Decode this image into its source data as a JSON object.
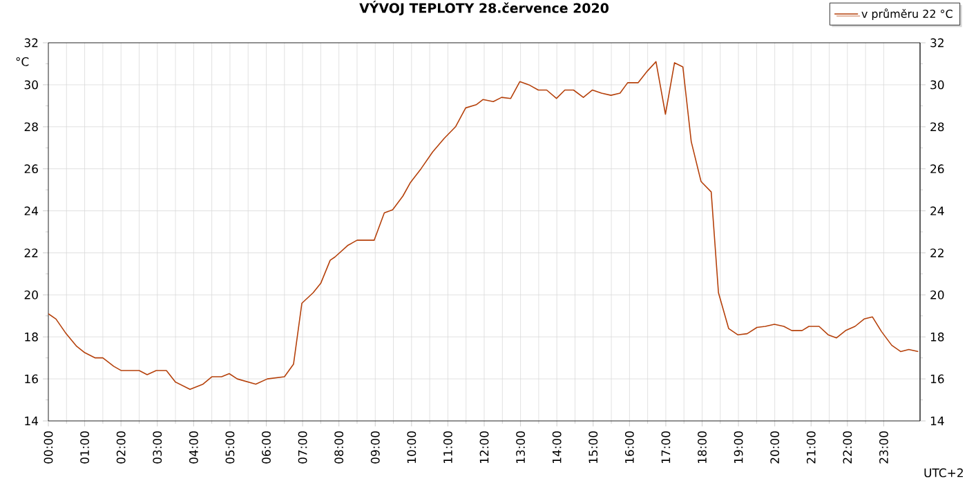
{
  "chart_data": {
    "type": "line",
    "title": "VÝVOJ TEPLOTY  28.července 2020",
    "ylabel": "°C",
    "annotations": [
      "UTC+2"
    ],
    "xlim": [
      0,
      24
    ],
    "xticks": [
      {
        "value": 0,
        "label": "00:00"
      },
      {
        "value": 1,
        "label": "01:00"
      },
      {
        "value": 2,
        "label": "02:00"
      },
      {
        "value": 3,
        "label": "03:00"
      },
      {
        "value": 4,
        "label": "04:00"
      },
      {
        "value": 5,
        "label": "05:00"
      },
      {
        "value": 6,
        "label": "06:00"
      },
      {
        "value": 7,
        "label": "07:00"
      },
      {
        "value": 8,
        "label": "08:00"
      },
      {
        "value": 9,
        "label": "09:00"
      },
      {
        "value": 10,
        "label": "10:00"
      },
      {
        "value": 11,
        "label": "11:00"
      },
      {
        "value": 12,
        "label": "12:00"
      },
      {
        "value": 13,
        "label": "13:00"
      },
      {
        "value": 14,
        "label": "14:00"
      },
      {
        "value": 15,
        "label": "15:00"
      },
      {
        "value": 16,
        "label": "16:00"
      },
      {
        "value": 17,
        "label": "17:00"
      },
      {
        "value": 18,
        "label": "18:00"
      },
      {
        "value": 19,
        "label": "19:00"
      },
      {
        "value": 20,
        "label": "20:00"
      },
      {
        "value": 21,
        "label": "21:00"
      },
      {
        "value": 22,
        "label": "22:00"
      },
      {
        "value": 23,
        "label": "23:00"
      }
    ],
    "ylim": [
      14,
      32
    ],
    "yticks": [
      14,
      16,
      18,
      20,
      22,
      24,
      26,
      28,
      30,
      32
    ],
    "y2lim": [
      14,
      32
    ],
    "y2ticks": [
      14,
      16,
      18,
      20,
      22,
      24,
      26,
      28,
      30,
      32
    ],
    "grid": true,
    "legend": "top right",
    "marker": "none",
    "line_style": "solid",
    "series": [
      {
        "name": "v průměru 22 °C",
        "color": "#b5400a",
        "x": [
          0,
          0.21,
          0.47,
          0.78,
          1.0,
          1.29,
          1.5,
          1.8,
          2.0,
          2.5,
          2.72,
          2.97,
          3.25,
          3.5,
          3.9,
          4.26,
          4.5,
          4.77,
          4.98,
          5.2,
          5.71,
          6.03,
          6.5,
          6.75,
          6.98,
          7.29,
          7.5,
          7.76,
          7.89,
          8.24,
          8.5,
          8.97,
          9.25,
          9.48,
          9.76,
          9.97,
          10.26,
          10.58,
          10.9,
          11.21,
          11.49,
          11.78,
          11.97,
          12.25,
          12.48,
          12.73,
          12.98,
          13.23,
          13.49,
          13.72,
          13.99,
          14.22,
          14.46,
          14.73,
          14.98,
          15.23,
          15.49,
          15.74,
          15.95,
          16.24,
          16.49,
          16.73,
          16.99,
          17.24,
          17.47,
          17.7,
          17.97,
          18.25,
          18.45,
          18.73,
          18.98,
          19.24,
          19.51,
          19.74,
          19.99,
          20.25,
          20.47,
          20.75,
          20.94,
          21.22,
          21.47,
          21.7,
          21.95,
          22.21,
          22.46,
          22.69,
          22.94,
          23.22,
          23.47,
          23.69,
          23.95
        ],
        "values": [
          19.1,
          18.85,
          18.2,
          17.55,
          17.25,
          17.0,
          17.0,
          16.6,
          16.4,
          16.4,
          16.2,
          16.4,
          16.4,
          15.85,
          15.5,
          15.75,
          16.1,
          16.1,
          16.25,
          16.0,
          15.75,
          16.0,
          16.1,
          16.7,
          19.6,
          20.1,
          20.55,
          21.65,
          21.8,
          22.35,
          22.6,
          22.6,
          23.9,
          24.05,
          24.7,
          25.35,
          26.0,
          26.8,
          27.45,
          28.0,
          28.9,
          29.05,
          29.3,
          29.2,
          29.4,
          29.35,
          30.15,
          30.0,
          29.75,
          29.75,
          29.35,
          29.75,
          29.75,
          29.4,
          29.75,
          29.6,
          29.5,
          29.6,
          30.1,
          30.1,
          30.65,
          31.1,
          28.6,
          31.05,
          30.85,
          27.3,
          25.4,
          24.9,
          20.1,
          18.4,
          18.1,
          18.15,
          18.45,
          18.5,
          18.6,
          18.5,
          18.3,
          18.3,
          18.5,
          18.5,
          18.1,
          17.95,
          18.3,
          18.5,
          18.85,
          18.95,
          18.25,
          17.6,
          17.3,
          17.4,
          17.3
        ]
      }
    ]
  }
}
